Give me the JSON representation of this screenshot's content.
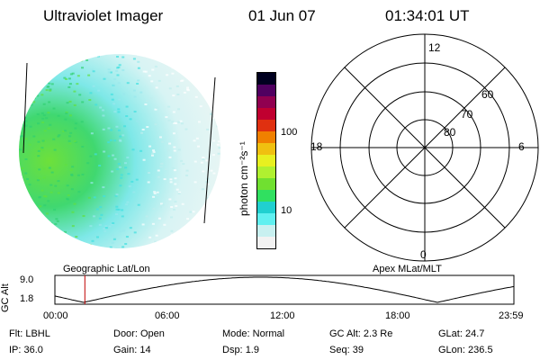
{
  "header": {
    "instrument": "Ultraviolet Imager",
    "date": "01 Jun 07",
    "time": "01:34:01 UT"
  },
  "colorbar": {
    "unit_label": "photon cm⁻²s⁻¹",
    "tick_labels": [
      "100",
      "10"
    ],
    "colors": [
      "#f2f2f2",
      "#c8f0f0",
      "#60f0f0",
      "#20d0d0",
      "#30e060",
      "#70e030",
      "#b0f030",
      "#e8f020",
      "#f0c010",
      "#f08000",
      "#e03010",
      "#c00030",
      "#900050",
      "#500060",
      "#000020"
    ]
  },
  "polar_grid": {
    "mlt_labels": [
      "12",
      "18",
      "6",
      "0"
    ],
    "mlat_labels": [
      "60",
      "70",
      "80"
    ]
  },
  "coord_labels": {
    "left": "Geographic Lat/Lon",
    "right": "Apex MLat/MLT"
  },
  "altitude_plot": {
    "y_axis_label": "GC Alt",
    "y_ticks": [
      "9.0",
      "1.8"
    ],
    "x_ticks": [
      "00:00",
      "06:00",
      "12:00",
      "18:00",
      "23:59"
    ],
    "current_time_hours": 1.567,
    "marker_color": "#c00000"
  },
  "status": {
    "row1": [
      {
        "label": "Flt:",
        "value": "LBHL"
      },
      {
        "label": "Door:",
        "value": "Open"
      },
      {
        "label": "Mode:",
        "value": "Normal"
      },
      {
        "label": "GC Alt:",
        "value": "2.3 Re"
      },
      {
        "label": "GLat:",
        "value": "24.7"
      }
    ],
    "row2": [
      {
        "label": "IP:",
        "value": "36.0"
      },
      {
        "label": "Gain:",
        "value": "14"
      },
      {
        "label": "Dsp:",
        "value": "1.9"
      },
      {
        "label": "Seq:",
        "value": "39"
      },
      {
        "label": "GLon:",
        "value": "236.5"
      }
    ]
  }
}
